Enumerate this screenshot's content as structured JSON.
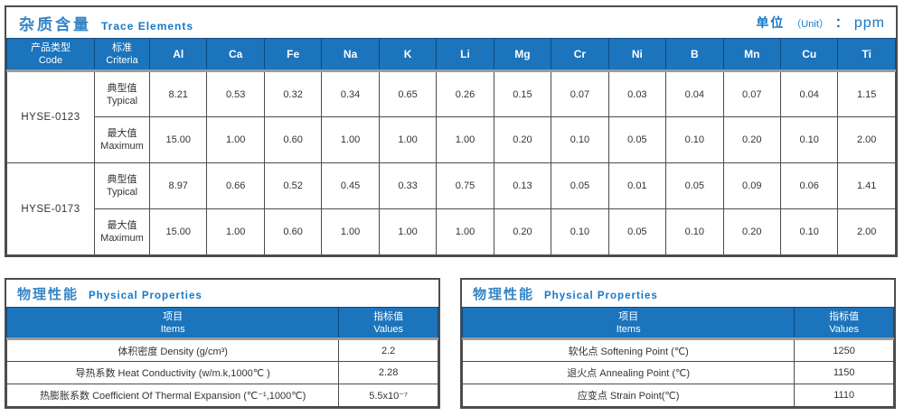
{
  "trace_table": {
    "title_cn": "杂质含量",
    "title_en": "Trace Elements",
    "unit_cn": "单位",
    "unit_paren": "（Unit）",
    "unit_colon": "：",
    "unit_value": "ppm",
    "col_code_cn": "产品类型",
    "col_code_en": "Code",
    "col_criteria_cn": "标准",
    "col_criteria_en": "Criteria",
    "labels": {
      "typical_cn": "典型值",
      "typical_en": "Typical",
      "maximum_cn": "最大值",
      "maximum_en": "Maximum"
    },
    "elements": [
      "Al",
      "Ca",
      "Fe",
      "Na",
      "K",
      "Li",
      "Mg",
      "Cr",
      "Ni",
      "B",
      "Mn",
      "Cu",
      "Ti"
    ],
    "rows": [
      {
        "code": "HYSE-0123",
        "typical": [
          "8.21",
          "0.53",
          "0.32",
          "0.34",
          "0.65",
          "0.26",
          "0.15",
          "0.07",
          "0.03",
          "0.04",
          "0.07",
          "0.04",
          "1.15"
        ],
        "maximum": [
          "15.00",
          "1.00",
          "0.60",
          "1.00",
          "1.00",
          "1.00",
          "0.20",
          "0.10",
          "0.05",
          "0.10",
          "0.20",
          "0.10",
          "2.00"
        ]
      },
      {
        "code": "HYSE-0173",
        "typical": [
          "8.97",
          "0.66",
          "0.52",
          "0.45",
          "0.33",
          "0.75",
          "0.13",
          "0.05",
          "0.01",
          "0.05",
          "0.09",
          "0.06",
          "1.41"
        ],
        "maximum": [
          "15.00",
          "1.00",
          "0.60",
          "1.00",
          "1.00",
          "1.00",
          "0.20",
          "0.10",
          "0.05",
          "0.10",
          "0.20",
          "0.10",
          "2.00"
        ]
      }
    ]
  },
  "physical_left": {
    "title_cn": "物理性能",
    "title_en": "Physical Properties",
    "header_item_cn": "项目",
    "header_item_en": "Items",
    "header_value_cn": "指标值",
    "header_value_en": "Values",
    "rows": [
      {
        "item": "体积密度 Density (g/cm³)",
        "value": "2.2"
      },
      {
        "item": "导热系数 Heat Conductivity (w/m.k,1000℃ )",
        "value": "2.28"
      },
      {
        "item": "热膨胀系数 Coefficient Of Thermal Expansion (℃⁻¹,1000℃)",
        "value": "5.5x10⁻⁷"
      }
    ]
  },
  "physical_right": {
    "title_cn": "物理性能",
    "title_en": "Physical Properties",
    "header_item_cn": "项目",
    "header_item_en": "Items",
    "header_value_cn": "指标值",
    "header_value_en": "Values",
    "rows": [
      {
        "item": "软化点 Softening Point (℃)",
        "value": "1250"
      },
      {
        "item": "退火点 Annealing Point (℃)",
        "value": "1150"
      },
      {
        "item": "应变点 Strain Point(℃)",
        "value": "1110"
      }
    ]
  }
}
